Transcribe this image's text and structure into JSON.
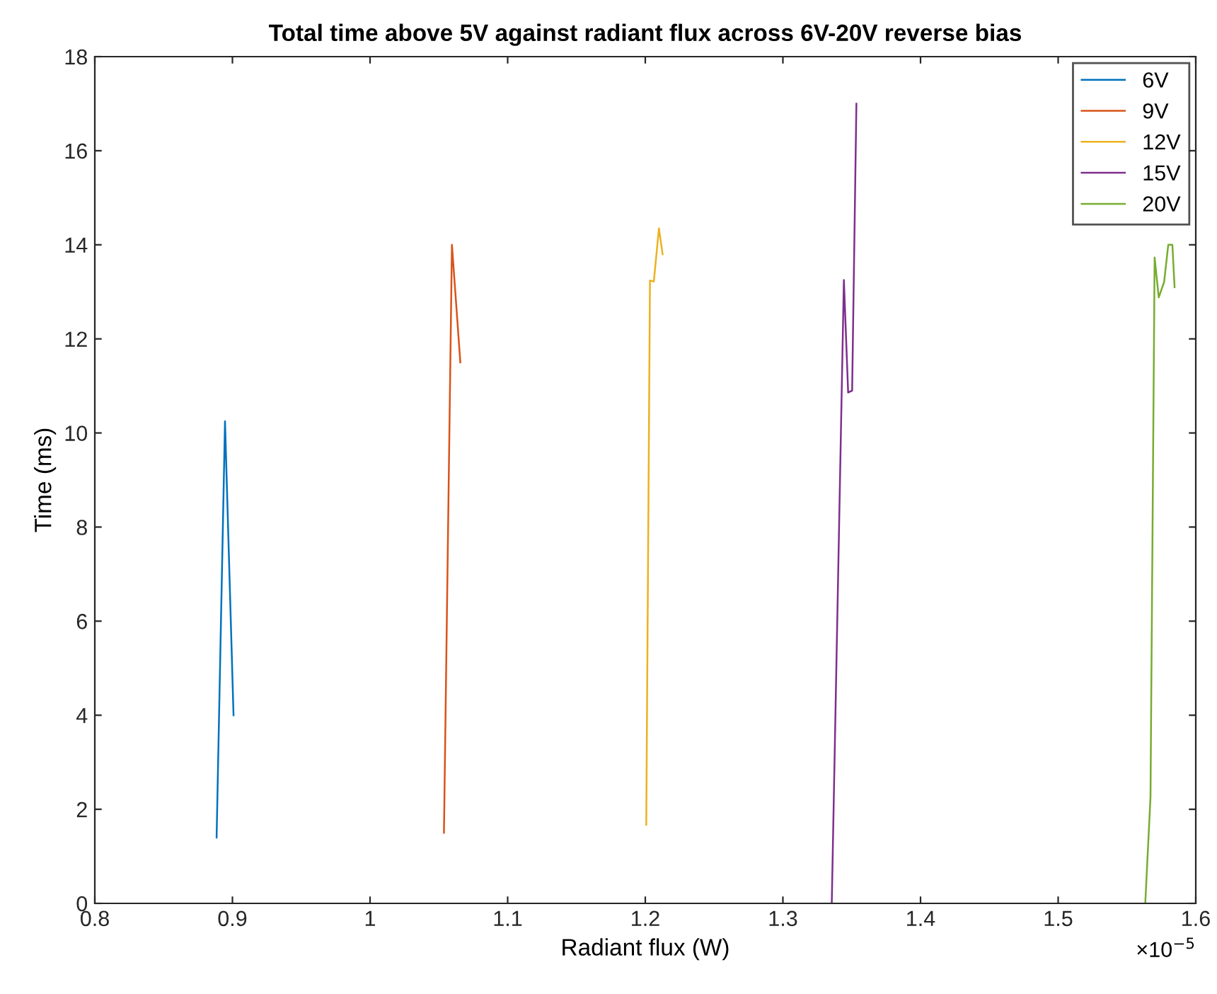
{
  "chart_data": {
    "type": "line",
    "title": "Total time above 5V against radiant flux across 6V-20V reverse bias",
    "xlabel": "Radiant flux (W)",
    "ylabel": "Time (ms)",
    "series": [
      {
        "name": "6V",
        "color": "#0072bd",
        "x": [
          0.8885,
          0.8946,
          0.9008
        ],
        "values": [
          1.4,
          10.25,
          4.0
        ]
      },
      {
        "name": "9V",
        "color": "#d95319",
        "x": [
          1.0537,
          1.0595,
          1.0656
        ],
        "values": [
          1.5,
          14.0,
          11.5
        ]
      },
      {
        "name": "12V",
        "color": "#edb120",
        "x": [
          1.2007,
          1.2034,
          1.2062,
          1.2099,
          1.2126
        ],
        "values": [
          1.67,
          13.24,
          13.22,
          14.35,
          13.8
        ]
      },
      {
        "name": "15V",
        "color": "#7e2f8e",
        "x": [
          1.3355,
          1.3443,
          1.3474,
          1.3503,
          1.3534
        ],
        "values": [
          0,
          13.25,
          10.86,
          10.9,
          17.0
        ]
      },
      {
        "name": "20V",
        "color": "#77ac30",
        "x": [
          1.5633,
          1.5671,
          1.5701,
          1.5731,
          1.577,
          1.58,
          1.583,
          1.5846
        ],
        "values": [
          0,
          2.26,
          13.73,
          12.88,
          13.21,
          14.0,
          14.0,
          13.1
        ]
      }
    ],
    "xlim": [
      0.8,
      1.6
    ],
    "xticks": [
      0.8,
      0.9,
      1,
      1.1,
      1.2,
      1.3,
      1.4,
      1.5,
      1.6
    ],
    "ylim": [
      0,
      18
    ],
    "yticks": [
      0,
      2,
      4,
      6,
      8,
      10,
      12,
      14,
      16,
      18
    ],
    "annotations": [
      "×10$^{−5}$"
    ],
    "legend": "top right",
    "grid": false,
    "marker": "none",
    "line_style": "solid"
  }
}
